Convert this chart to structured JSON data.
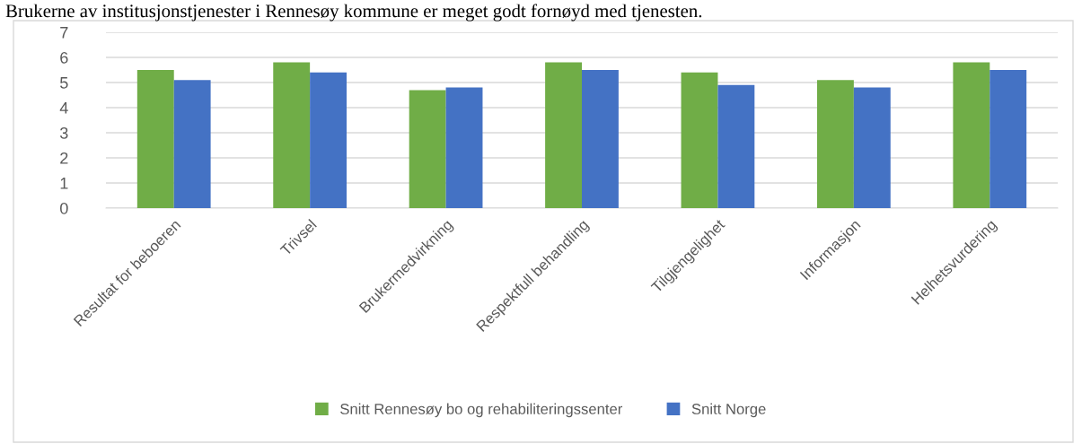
{
  "chart_data": {
    "type": "bar",
    "title": "Brukerne av institusjonstjenester i Rennesøy kommune er meget godt fornøyd med tjenesten.",
    "categories": [
      "Resultat for beboeren",
      "Trivsel",
      "Brukermedvirkning",
      "Respektfull behandling",
      "Tilgjengelighet",
      "Informasjon",
      "Helhetsvurdering"
    ],
    "series": [
      {
        "name": "Snitt Rennesøy bo og rehabiliteringssenter",
        "color": "#70ad47",
        "values": [
          5.5,
          5.8,
          4.7,
          5.8,
          5.4,
          5.1,
          5.8
        ]
      },
      {
        "name": "Snitt Norge",
        "color": "#4472c4",
        "values": [
          5.1,
          5.4,
          4.8,
          5.5,
          4.9,
          4.8,
          5.5
        ]
      }
    ],
    "ylim": [
      0,
      7
    ],
    "yticks": [
      0,
      1,
      2,
      3,
      4,
      5,
      6,
      7
    ],
    "grid": "y",
    "legend": "bottom"
  }
}
